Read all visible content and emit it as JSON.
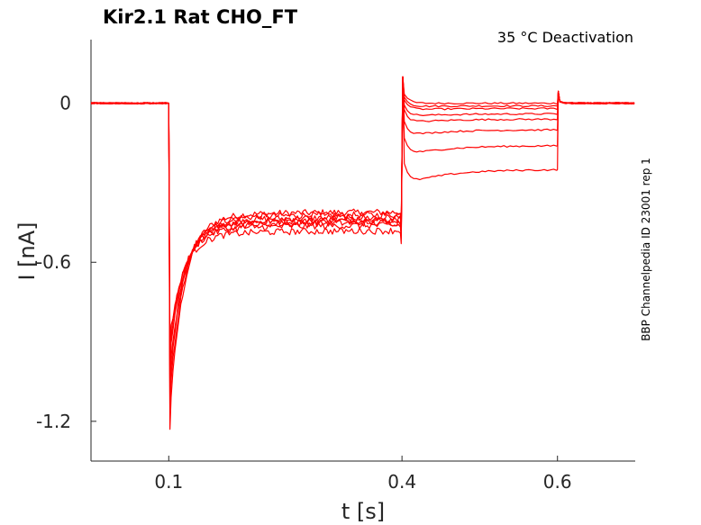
{
  "chart_data": {
    "type": "line",
    "title": "Kir2.1  Rat  CHO_FT",
    "annotation": "35 °C  Deactivation",
    "side_label": "BBP Channelpedia ID 23001 rep 1",
    "xlabel": "t [s]",
    "ylabel": "I [nA]",
    "xlim": [
      0.0,
      0.7
    ],
    "ylim": [
      -1.35,
      0.24
    ],
    "x_ticks": [
      {
        "value": 0.1,
        "label": "0.1"
      },
      {
        "value": 0.4,
        "label": "0.4"
      },
      {
        "value": 0.6,
        "label": "0.6"
      }
    ],
    "y_ticks": [
      {
        "value": 0,
        "label": "0"
      },
      {
        "value": -0.6,
        "label": "-0.6"
      },
      {
        "value": -1.2,
        "label": "-1.2"
      }
    ],
    "grid": false,
    "line_color": "#ff0000",
    "protocol": {
      "step1_start": 0.1,
      "step2_start": 0.4,
      "step2_end": 0.6
    },
    "series": [
      {
        "values": {
          "peak": -1.23,
          "plateau1": -0.43,
          "step2": 0.0
        }
      },
      {
        "values": {
          "peak": -1.16,
          "plateau1": -0.44,
          "step2": -0.01
        }
      },
      {
        "values": {
          "peak": -1.1,
          "plateau1": -0.45,
          "step2": -0.02
        }
      },
      {
        "values": {
          "peak": -1.05,
          "plateau1": -0.46,
          "step2": -0.04
        }
      },
      {
        "values": {
          "peak": -1.0,
          "plateau1": -0.46,
          "step2": -0.06
        }
      },
      {
        "values": {
          "peak": -0.97,
          "plateau1": -0.47,
          "step2": -0.1
        }
      },
      {
        "values": {
          "peak": -0.94,
          "plateau1": -0.48,
          "step2": -0.16
        }
      },
      {
        "values": {
          "peak": -0.91,
          "plateau1": -0.5,
          "step2": -0.25
        }
      }
    ]
  }
}
